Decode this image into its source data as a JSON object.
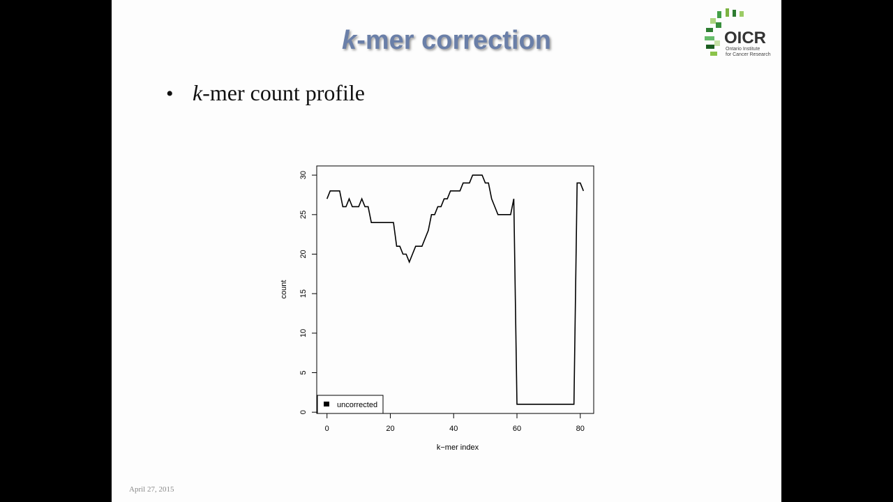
{
  "slide": {
    "title_k": "k",
    "title_rest": "-mer correction",
    "bullet_k": "k",
    "bullet_rest": "-mer count profile",
    "date": "April 27, 2015",
    "logo": "OICR",
    "logo_sub_1": "Ontario Institute",
    "logo_sub_2": "for Cancer Research"
  },
  "chart_data": {
    "type": "line",
    "xlabel": "k−mer index",
    "ylabel": "count",
    "x": [
      0,
      1,
      2,
      3,
      4,
      5,
      6,
      7,
      8,
      9,
      10,
      11,
      12,
      13,
      14,
      15,
      16,
      17,
      18,
      19,
      20,
      21,
      22,
      23,
      24,
      25,
      26,
      27,
      28,
      29,
      30,
      31,
      32,
      33,
      34,
      35,
      36,
      37,
      38,
      39,
      40,
      41,
      42,
      43,
      44,
      45,
      46,
      47,
      48,
      49,
      50,
      51,
      52,
      53,
      54,
      55,
      56,
      57,
      58,
      59,
      60,
      61,
      62,
      63,
      64,
      65,
      66,
      67,
      68,
      69,
      70,
      71,
      72,
      73,
      74,
      75,
      76,
      77,
      78,
      79,
      80,
      81
    ],
    "series": [
      {
        "name": "uncorrected",
        "color": "#000000",
        "values": [
          27,
          28,
          28,
          28,
          28,
          26,
          26,
          27,
          26,
          26,
          26,
          27,
          26,
          26,
          24,
          24,
          24,
          24,
          24,
          24,
          24,
          24,
          21,
          21,
          20,
          20,
          19,
          20,
          21,
          21,
          21,
          22,
          23,
          25,
          25,
          26,
          26,
          27,
          27,
          28,
          28,
          28,
          28,
          29,
          29,
          29,
          30,
          30,
          30,
          30,
          29,
          29,
          27,
          26,
          25,
          25,
          25,
          25,
          25,
          27,
          1,
          1,
          1,
          1,
          1,
          1,
          1,
          1,
          1,
          1,
          1,
          1,
          1,
          1,
          1,
          1,
          1,
          1,
          1,
          29,
          29,
          28
        ]
      }
    ],
    "xlim": [
      -3.24,
      84.24
    ],
    "ylim": [
      -0.16,
      31.16
    ],
    "xticks": [
      0,
      20,
      40,
      60,
      80
    ],
    "yticks": [
      0,
      5,
      10,
      15,
      20,
      25,
      30
    ],
    "legend": "bottom-left"
  }
}
